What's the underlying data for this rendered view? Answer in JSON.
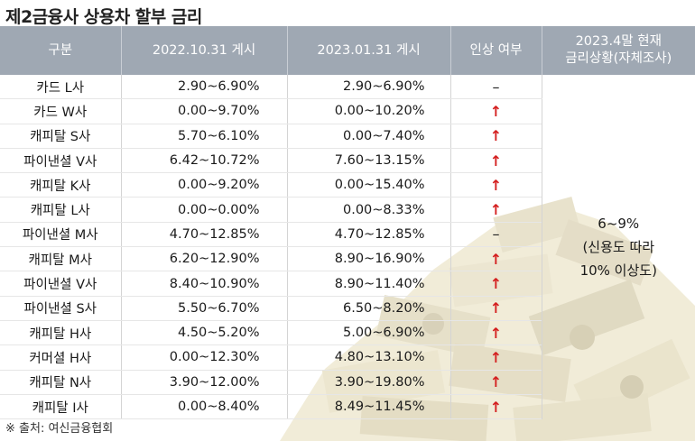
{
  "title": "제2금융사 상용차 할부 금리",
  "headers": {
    "col1": "구분",
    "col2": "2022.10.31 게시",
    "col3": "2023.01.31 게시",
    "col4": "인상 여부",
    "col5_line1": "2023.4말 현재",
    "col5_line2": "금리상황(자체조사)"
  },
  "rows": [
    {
      "name": "카드 L사",
      "r2022": "2.90~6.90%",
      "r2023": "2.90~6.90%",
      "change": "–"
    },
    {
      "name": "카드 W사",
      "r2022": "0.00~9.70%",
      "r2023": "0.00~10.20%",
      "change": "↑"
    },
    {
      "name": "캐피탈 S사",
      "r2022": "5.70~6.10%",
      "r2023": "0.00~7.40%",
      "change": "↑"
    },
    {
      "name": "파이낸셜 V사",
      "r2022": "6.42~10.72%",
      "r2023": "7.60~13.15%",
      "change": "↑"
    },
    {
      "name": "캐피탈 K사",
      "r2022": "0.00~9.20%",
      "r2023": "0.00~15.40%",
      "change": "↑"
    },
    {
      "name": "캐피탈 L사",
      "r2022": "0.00~0.00%",
      "r2023": "0.00~8.33%",
      "change": "↑"
    },
    {
      "name": "파이낸셜 M사",
      "r2022": "4.70~12.85%",
      "r2023": "4.70~12.85%",
      "change": "–"
    },
    {
      "name": "캐피탈 M사",
      "r2022": "6.20~12.90%",
      "r2023": "8.90~16.90%",
      "change": "↑"
    },
    {
      "name": "파이낸셜 V사",
      "r2022": "8.40~10.90%",
      "r2023": "8.90~11.40%",
      "change": "↑"
    },
    {
      "name": "파이낸셜 S사",
      "r2022": "5.50~6.70%",
      "r2023": "6.50~8.20%",
      "change": "↑"
    },
    {
      "name": "캐피탈 H사",
      "r2022": "4.50~5.20%",
      "r2023": "5.00~6.90%",
      "change": "↑"
    },
    {
      "name": "커머셜 H사",
      "r2022": "0.00~12.30%",
      "r2023": "4.80~13.10%",
      "change": "↑"
    },
    {
      "name": "캐피탈 N사",
      "r2022": "3.90~12.00%",
      "r2023": "3.90~19.80%",
      "change": "↑"
    },
    {
      "name": "캐피탈 I사",
      "r2022": "0.00~8.40%",
      "r2023": "8.49~11.45%",
      "change": "↑"
    }
  ],
  "current_status": {
    "line1": "6~9%",
    "line2": "(신용도 따라",
    "line3": "10% 이상도)"
  },
  "footer": "※ 출처: 여신금융협회",
  "colors": {
    "header_bg": "#9fa8b3",
    "arrow_red": "#d42020",
    "money_tan": "#d9cfa8"
  }
}
